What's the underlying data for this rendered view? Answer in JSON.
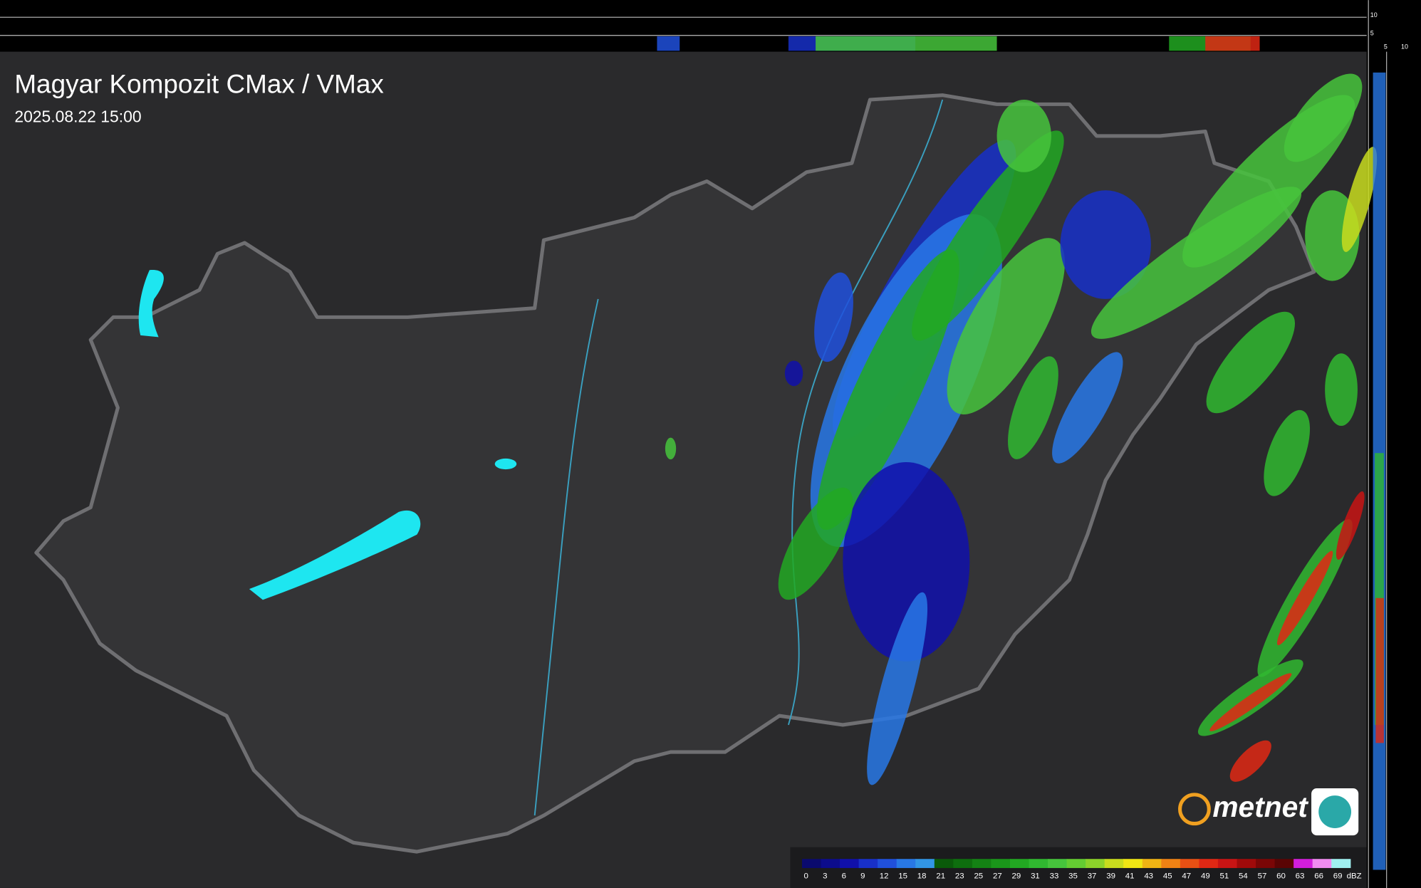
{
  "header": {
    "title": "Magyar Kompozit CMax / VMax",
    "time": "2025.08.22 15:00"
  },
  "profile": {
    "top_ticks": [
      "10",
      "5"
    ],
    "side_ticks": [
      "5",
      "10"
    ]
  },
  "logo": {
    "text": "metnet"
  },
  "legend": {
    "unit": "dBZ",
    "ticks": [
      0,
      3,
      6,
      9,
      12,
      15,
      18,
      21,
      23,
      25,
      27,
      29,
      31,
      33,
      35,
      37,
      39,
      41,
      43,
      45,
      47,
      49,
      51,
      54,
      57,
      60,
      63,
      66,
      69
    ],
    "colors": [
      "#0a0a6e",
      "#0c0c8c",
      "#1010aa",
      "#1830c8",
      "#2050dc",
      "#2878e6",
      "#3296e6",
      "#0a5a0a",
      "#0e6e0e",
      "#148214",
      "#1a961a",
      "#22a822",
      "#30b830",
      "#46c43c",
      "#64cc32",
      "#8cd22a",
      "#c8dc1e",
      "#f0e614",
      "#f0b414",
      "#f08214",
      "#e85014",
      "#e02814",
      "#c81414",
      "#a00a0a",
      "#7a0606",
      "#5a0404",
      "#d21edc",
      "#f08cf0",
      "#a0f0f0"
    ]
  }
}
